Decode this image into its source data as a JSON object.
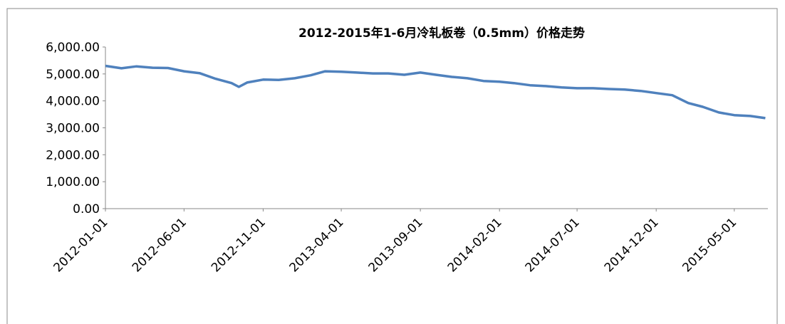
{
  "chart_data": {
    "type": "line",
    "title": "2012-2015年1-6月冷轧板卷（0.5mm）价格走势",
    "x": [
      "2012-01-01",
      "2012-02-01",
      "2012-03-01",
      "2012-04-01",
      "2012-05-01",
      "2012-06-01",
      "2012-07-01",
      "2012-08-01",
      "2012-09-01",
      "2012-09-15",
      "2012-10-01",
      "2012-11-01",
      "2012-12-01",
      "2013-01-01",
      "2013-02-01",
      "2013-03-01",
      "2013-04-01",
      "2013-05-01",
      "2013-06-01",
      "2013-07-01",
      "2013-08-01",
      "2013-09-01",
      "2013-10-01",
      "2013-11-01",
      "2013-12-01",
      "2014-01-01",
      "2014-02-01",
      "2014-03-01",
      "2014-04-01",
      "2014-05-01",
      "2014-06-01",
      "2014-07-01",
      "2014-08-01",
      "2014-09-01",
      "2014-10-01",
      "2014-11-01",
      "2014-12-01",
      "2015-01-01",
      "2015-02-01",
      "2015-03-01",
      "2015-04-01",
      "2015-05-01",
      "2015-06-01",
      "2015-06-30"
    ],
    "series": [
      {
        "name": "冷轧板卷（0.5mm）",
        "color": "#4f81bd",
        "values": [
          5300,
          5210,
          5280,
          5230,
          5220,
          5100,
          5030,
          4820,
          4660,
          4520,
          4680,
          4790,
          4780,
          4840,
          4950,
          5100,
          5080,
          5050,
          5020,
          5020,
          4970,
          5050,
          4970,
          4890,
          4840,
          4740,
          4710,
          4660,
          4580,
          4550,
          4500,
          4470,
          4470,
          4440,
          4420,
          4370,
          4290,
          4210,
          3920,
          3780,
          3570,
          3470,
          3440,
          3360
        ]
      }
    ],
    "xlim": [
      "2012-01-01",
      "2015-07-05"
    ],
    "xticks": [
      "2012-01-01",
      "2012-06-01",
      "2012-11-01",
      "2013-04-01",
      "2013-09-01",
      "2014-02-01",
      "2014-07-01",
      "2014-12-01",
      "2015-05-01"
    ],
    "ylim": [
      0,
      6000
    ],
    "yticks": [
      {
        "value": 0,
        "label": "0.00"
      },
      {
        "value": 1000,
        "label": "1,000.00"
      },
      {
        "value": 2000,
        "label": "2,000.00"
      },
      {
        "value": 3000,
        "label": "3,000.00"
      },
      {
        "value": 4000,
        "label": "4,000.00"
      },
      {
        "value": 5000,
        "label": "5,000.00"
      },
      {
        "value": 6000,
        "label": "6,000.00"
      }
    ],
    "grid": false
  }
}
